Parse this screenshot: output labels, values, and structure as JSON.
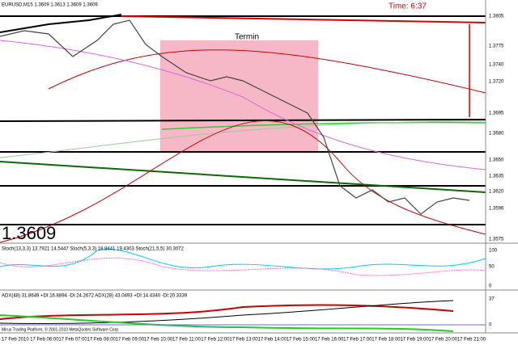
{
  "header": {
    "symbol": "EURUSD,M15  1.3609 1.3613 1.3609 1.3609",
    "timer": "Time: 6:37"
  },
  "annotations": {
    "zone": "Termin",
    "big_price": "1.3609"
  },
  "indicators": {
    "stoch": "Stoch(13,3,3) 13.7921 14.5447  Stoch(5,3,3) 18.8441 19.4303  Stoch(21,5,5) 30.3072",
    "adx": "ADX(48) 31.8649 +DI:16.8894 -DI:24.2672  ADX(28) 43.0493 +DI:14.4340 -DI:20.3339",
    "footer": "Mirus Trading Platform, © 2001-2010 MetaQuotes Software Corp."
  },
  "price_axis": [
    "1.3805",
    "1.3775",
    "1.3740",
    "1.3720",
    "1.3695",
    "1.3680",
    "1.3650",
    "1.3635",
    "1.3620",
    "1.3596",
    "1.3575"
  ],
  "sub_axis": [
    "100",
    "50",
    "0",
    "37",
    "0"
  ],
  "time_axis": [
    "17 Feb 2010",
    "17 Feb 06:00",
    "17 Feb 07:00",
    "17 Feb 08:00",
    "17 Feb 09:00",
    "17 Feb 10:00",
    "17 Feb 11:00",
    "17 Feb 12:00",
    "17 Feb 13:00",
    "17 Feb 14:00",
    "17 Feb 15:00",
    "17 Feb 16:00",
    "17 Feb 17:00",
    "17 Feb 18:00",
    "17 Feb 19:00",
    "17 Feb 20:00",
    "17 Feb 21:00"
  ]
}
